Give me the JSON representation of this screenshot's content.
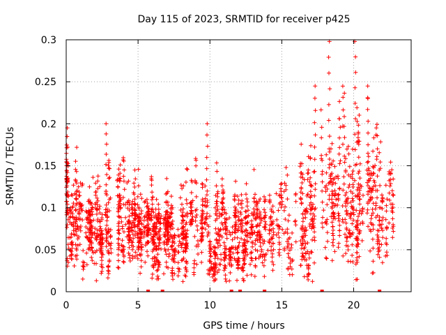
{
  "chart_data": {
    "type": "scatter",
    "title": "Day 115 of 2023, SRMTID for receiver p425",
    "xlabel": "GPS time / hours",
    "ylabel": "SRMTID / TECUs",
    "xlim": [
      0,
      24
    ],
    "ylim": [
      0,
      0.3
    ],
    "x_ticks": [
      0,
      5,
      10,
      15,
      20
    ],
    "x_tick_labels": [
      "0",
      "5",
      "10",
      "15",
      "20"
    ],
    "y_ticks": [
      0,
      0.05,
      0.1,
      0.15,
      0.2,
      0.25,
      0.3
    ],
    "y_tick_labels": [
      "0",
      "0.05",
      "0.1",
      "0.15",
      "0.2",
      "0.25",
      "0.3"
    ],
    "grid": true,
    "marker": "+",
    "series": [
      {
        "name": "SRMTID",
        "color": "#ff0000",
        "profile_x": [
          0,
          0.5,
          1,
          2,
          3,
          4,
          5,
          6,
          7,
          8,
          9,
          10,
          11,
          12,
          13,
          14,
          15,
          16,
          17,
          18,
          19,
          20,
          21,
          22,
          23
        ],
        "profile_mean": [
          0.095,
          0.085,
          0.088,
          0.075,
          0.08,
          0.09,
          0.075,
          0.065,
          0.07,
          0.07,
          0.072,
          0.065,
          0.062,
          0.06,
          0.065,
          0.07,
          0.08,
          0.09,
          0.095,
          0.11,
          0.11,
          0.115,
          0.105,
          0.1,
          0.115
        ],
        "profile_spread": [
          0.04,
          0.03,
          0.035,
          0.03,
          0.035,
          0.035,
          0.03,
          0.03,
          0.03,
          0.03,
          0.035,
          0.03,
          0.028,
          0.028,
          0.03,
          0.03,
          0.035,
          0.04,
          0.045,
          0.05,
          0.05,
          0.055,
          0.05,
          0.04,
          0.035
        ],
        "peaks": [
          {
            "x": 0.05,
            "y": 0.195
          },
          {
            "x": 2.8,
            "y": 0.2
          },
          {
            "x": 9.8,
            "y": 0.2
          },
          {
            "x": 17.3,
            "y": 0.245
          },
          {
            "x": 18.3,
            "y": 0.298
          },
          {
            "x": 20.1,
            "y": 0.298
          },
          {
            "x": 21.0,
            "y": 0.245
          }
        ],
        "n_points": 2400
      }
    ],
    "baseline_markers_x": [
      5.7,
      6.7,
      11.5,
      12.1,
      13.8,
      17.8,
      21.8
    ]
  }
}
